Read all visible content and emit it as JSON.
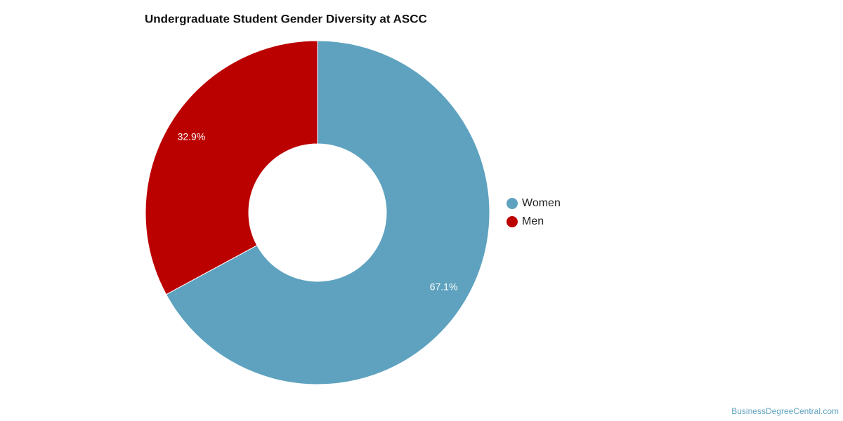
{
  "chart_data": {
    "type": "donut",
    "title": "Undergraduate Student Gender Diversity at ASCC",
    "categories": [
      "Women",
      "Men"
    ],
    "values": [
      67.1,
      32.9
    ],
    "value_labels": [
      "67.1%",
      "32.9%"
    ],
    "colors": [
      "#5ea2bf",
      "#bb0000"
    ],
    "legend": "right",
    "credit": "BusinessDegreeCentral.com"
  }
}
